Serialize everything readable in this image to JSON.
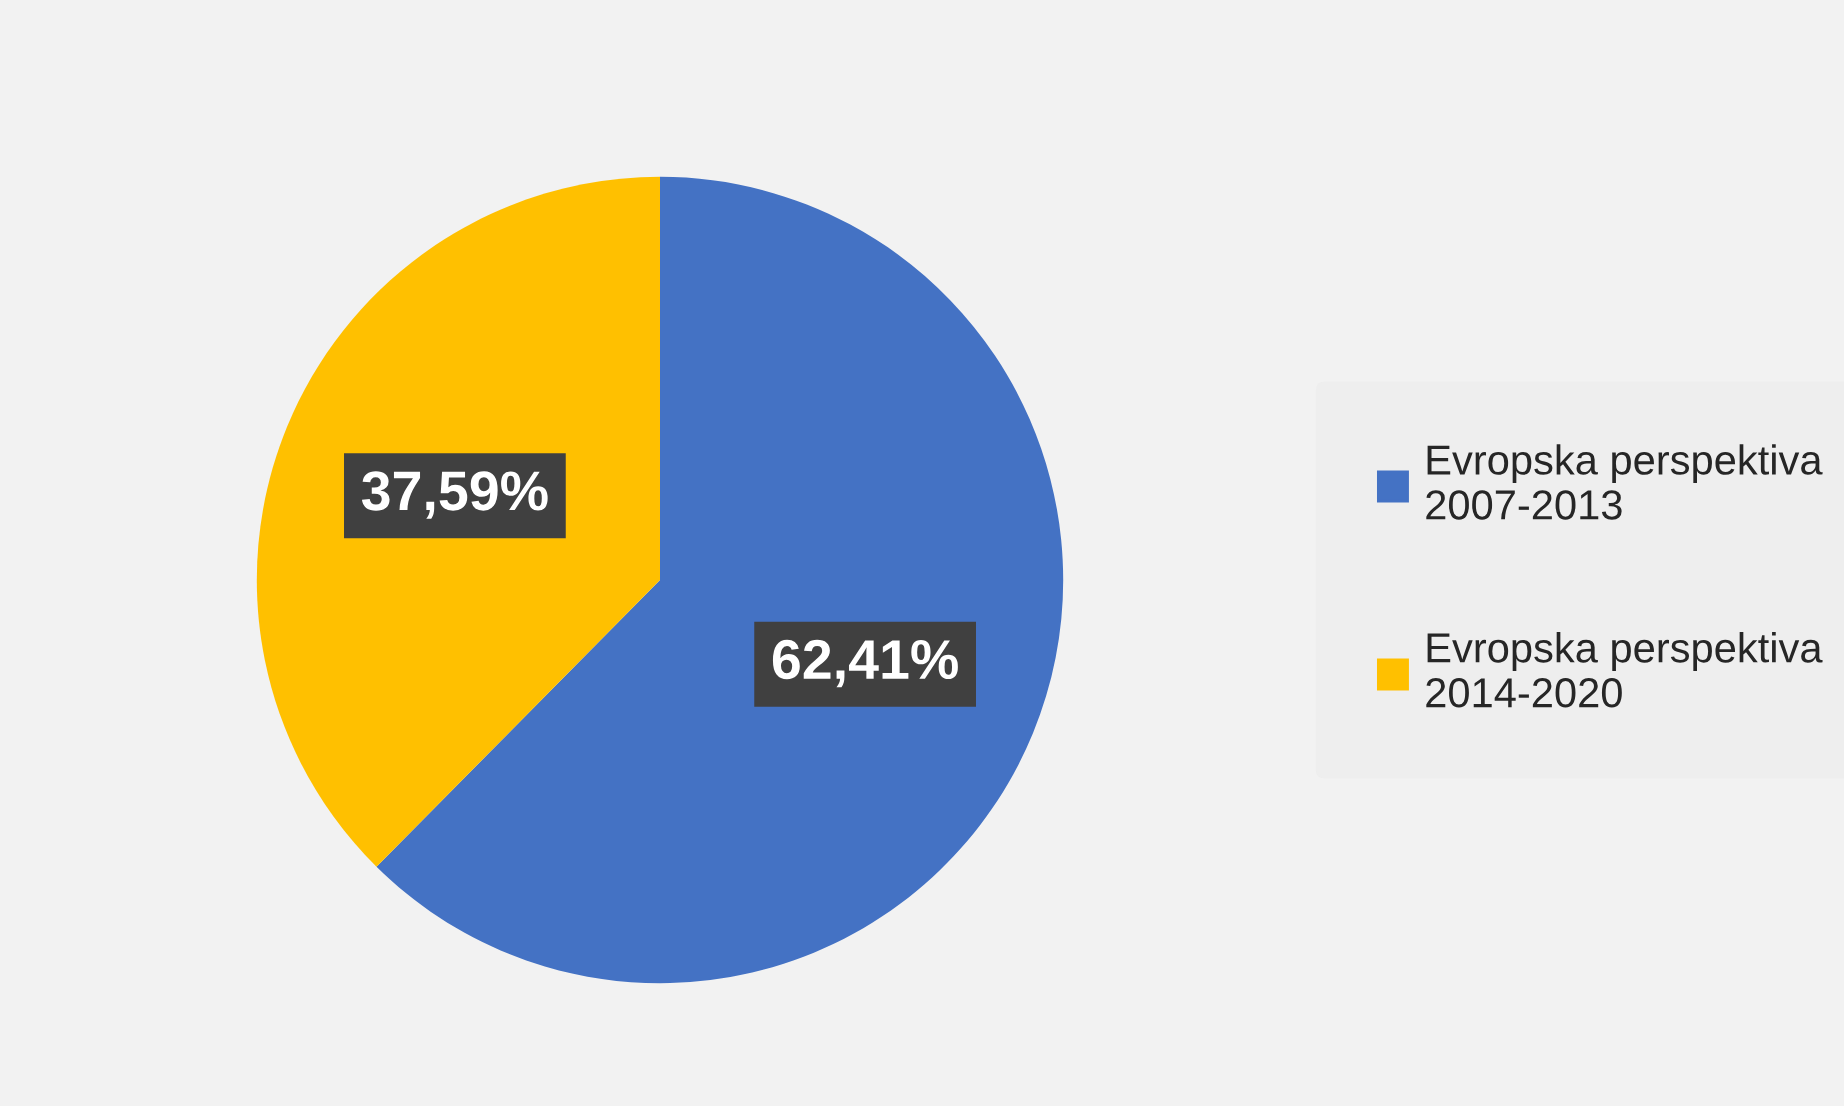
{
  "chart_data": {
    "type": "pie",
    "categories": [
      "Evropska perspektiva\n2007-2013",
      "Evropska perspektiva\n2014-2020"
    ],
    "values": [
      62.41,
      37.59
    ],
    "value_labels": [
      "62,41%",
      "37,59%"
    ],
    "colors": [
      "#4472c4",
      "#ffc000"
    ],
    "legend": "right"
  }
}
